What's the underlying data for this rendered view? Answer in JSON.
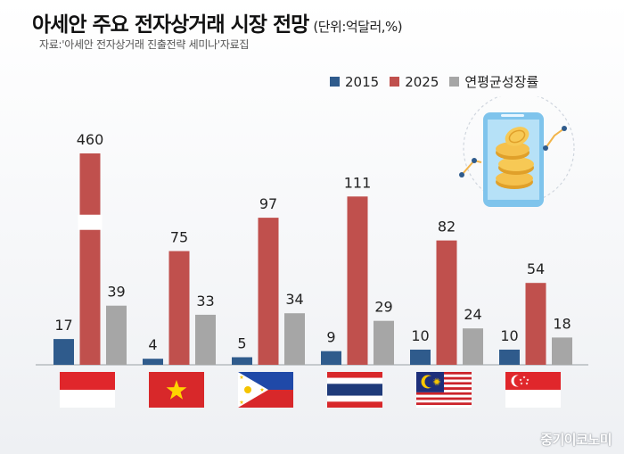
{
  "title": "아세안 주요 전자상거래 시장 전망",
  "unit": "(단위:억달러,%)",
  "source": "자료:'아세안 전자상거래 진출전략 세미나'자료집",
  "watermark": "중기이코노미",
  "colors": {
    "series_2015": "#2f5b8c",
    "series_2025": "#c0504d",
    "series_cagr": "#a6a6a6",
    "text": "#222222"
  },
  "legend": [
    {
      "label": "2015",
      "color": "#2f5b8c"
    },
    {
      "label": "2025",
      "color": "#c0504d"
    },
    {
      "label": "연평균성장률",
      "color": "#a6a6a6"
    }
  ],
  "chart_data": {
    "type": "bar",
    "title": "아세안 주요 전자상거래 시장 전망",
    "categories": [
      "indonesia-flag",
      "vietnam-flag",
      "philippines-flag",
      "thailand-flag",
      "malaysia-flag",
      "singapore-flag"
    ],
    "series": [
      {
        "name": "2015",
        "values": [
          17,
          4,
          5,
          9,
          10,
          10
        ]
      },
      {
        "name": "2025",
        "values": [
          460,
          75,
          97,
          111,
          82,
          54
        ]
      },
      {
        "name": "연평균성장률",
        "values": [
          39,
          33,
          34,
          29,
          24,
          18
        ]
      }
    ],
    "axis_break": {
      "series": "2025",
      "category": "indonesia-flag"
    },
    "grid": false,
    "legend_position": "top-right",
    "xlabel": "",
    "ylabel": ""
  }
}
